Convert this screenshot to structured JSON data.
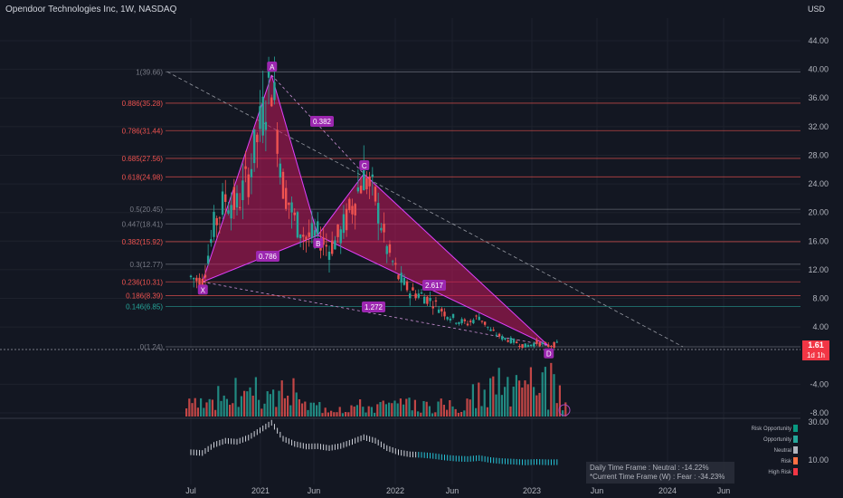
{
  "header": {
    "title": "Opendoor Technologies Inc, 1W, NASDAQ",
    "currency": "USD"
  },
  "price_badge": {
    "price": "1.61",
    "timer": "1d 1h"
  },
  "info_box": {
    "line1": "Daily Time Frame : Neutral : -14.22%",
    "line2": "*Current Time Frame (W) : Fear : -34.23%"
  },
  "legend": [
    {
      "label": "Risk Opportunity",
      "color": "#089981"
    },
    {
      "label": "Opportunity",
      "color": "#26a69a"
    },
    {
      "label": "Neutral",
      "color": "#b2b5be"
    },
    {
      "label": "Risk",
      "color": "#ff7043"
    },
    {
      "label": "High Risk",
      "color": "#f23645"
    }
  ],
  "colors": {
    "up": "#26a69a",
    "down": "#ef5350",
    "pattern": "#c2185b",
    "point": "#9c27b0",
    "background": "#131722"
  },
  "chart_data": {
    "type": "candlestick",
    "ylim": [
      -8,
      46
    ],
    "y_ticks": [
      "44.00",
      "40.00",
      "36.00",
      "32.00",
      "28.00",
      "24.00",
      "20.00",
      "16.00",
      "12.00",
      "8.00",
      "4.00",
      "-4.00",
      "-8.00"
    ],
    "x_ticks": [
      "Jul",
      "2021",
      "Jun",
      "2022",
      "Jun",
      "2023",
      "Jun",
      "2024",
      "Jun"
    ],
    "fib_levels": [
      {
        "label": "1(39.66)",
        "value": 39.66,
        "color": "#787b86"
      },
      {
        "label": "0.886(35.28)",
        "value": 35.28,
        "color": "#ef5350"
      },
      {
        "label": "0.786(31.44)",
        "value": 31.44,
        "color": "#ef5350"
      },
      {
        "label": "0.685(27.56)",
        "value": 27.56,
        "color": "#ef5350"
      },
      {
        "label": "0.618(24.98)",
        "value": 24.98,
        "color": "#ef5350"
      },
      {
        "label": "0.5(20.45)",
        "value": 20.45,
        "color": "#787b86"
      },
      {
        "label": "0.447(18.41)",
        "value": 18.41,
        "color": "#787b86"
      },
      {
        "label": "0.382(15.92)",
        "value": 15.92,
        "color": "#ef5350"
      },
      {
        "label": "0.3(12.77)",
        "value": 12.77,
        "color": "#787b86"
      },
      {
        "label": "0.236(10.31)",
        "value": 10.31,
        "color": "#ef5350"
      },
      {
        "label": "0.186(8.39)",
        "value": 8.39,
        "color": "#ef5350"
      },
      {
        "label": "0.146(6.85)",
        "value": 6.85,
        "color": "#26a69a"
      },
      {
        "label": "0(1.24)",
        "value": 1.24,
        "color": "#787b86"
      }
    ],
    "harmonic_points": [
      {
        "label": "X",
        "x": "2020-08",
        "y": 10.3
      },
      {
        "label": "A",
        "x": "2021-02",
        "y": 39.2
      },
      {
        "label": "B",
        "x": "2021-06",
        "y": 16.8
      },
      {
        "label": "C",
        "x": "2021-10",
        "y": 25.4
      },
      {
        "label": "D",
        "x": "2023-02",
        "y": 1.4
      }
    ],
    "ratio_labels": [
      "0.382",
      "0.786",
      "2.617",
      "1.272"
    ],
    "lower_pane": {
      "y_ticks": [
        "30.00",
        "10.00"
      ]
    },
    "price_path": [
      [
        "2020-07",
        11.0
      ],
      [
        "2020-08",
        10.3
      ],
      [
        "2020-09",
        18.0
      ],
      [
        "2020-10",
        22.0
      ],
      [
        "2020-11",
        21.0
      ],
      [
        "2020-12",
        25.0
      ],
      [
        "2021-01",
        32.0
      ],
      [
        "2021-02",
        39.2
      ],
      [
        "2021-03",
        24.0
      ],
      [
        "2021-04",
        19.0
      ],
      [
        "2021-05",
        16.5
      ],
      [
        "2021-06",
        16.8
      ],
      [
        "2021-07",
        15.0
      ],
      [
        "2021-08",
        17.0
      ],
      [
        "2021-09",
        21.0
      ],
      [
        "2021-10",
        25.4
      ],
      [
        "2021-11",
        22.0
      ],
      [
        "2021-12",
        15.0
      ],
      [
        "2022-01",
        11.0
      ],
      [
        "2022-02",
        9.0
      ],
      [
        "2022-03",
        8.5
      ],
      [
        "2022-04",
        7.5
      ],
      [
        "2022-05",
        6.0
      ],
      [
        "2022-06",
        5.0
      ],
      [
        "2022-07",
        4.5
      ],
      [
        "2022-08",
        5.5
      ],
      [
        "2022-09",
        3.5
      ],
      [
        "2022-10",
        2.5
      ],
      [
        "2022-11",
        2.0
      ],
      [
        "2022-12",
        1.3
      ],
      [
        "2023-01",
        1.8
      ],
      [
        "2023-02",
        1.4
      ],
      [
        "2023-03",
        1.61
      ]
    ]
  }
}
